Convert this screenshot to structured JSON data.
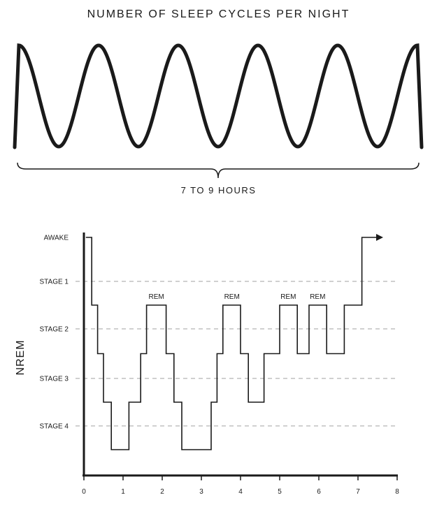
{
  "title": "NUMBER OF SLEEP CYCLES PER NIGHT",
  "duration_label": "7 TO 9 HOURS",
  "cycles": 5,
  "hypnogram": {
    "y_axis_title": "NREM",
    "levels": [
      "AWAKE",
      "STAGE 1",
      "STAGE 2",
      "STAGE 3",
      "STAGE 4"
    ],
    "x_ticks": [
      "0",
      "1",
      "2",
      "3",
      "4",
      "5",
      "6",
      "7",
      "8"
    ],
    "rem_labels": [
      "REM",
      "REM",
      "REM",
      "REM"
    ],
    "gridlines": "dashed",
    "path": [
      [
        0.05,
        0
      ],
      [
        0.2,
        0
      ],
      [
        0.2,
        1.5
      ],
      [
        0.35,
        1.5
      ],
      [
        0.35,
        2.5
      ],
      [
        0.5,
        2.5
      ],
      [
        0.5,
        3.5
      ],
      [
        0.7,
        3.5
      ],
      [
        0.7,
        4.5
      ],
      [
        1.15,
        4.5
      ],
      [
        1.15,
        3.5
      ],
      [
        1.45,
        3.5
      ],
      [
        1.45,
        2.5
      ],
      [
        1.6,
        2.5
      ],
      [
        1.6,
        1.5
      ],
      [
        2.1,
        1.5
      ],
      [
        2.1,
        2.5
      ],
      [
        2.3,
        2.5
      ],
      [
        2.3,
        3.5
      ],
      [
        2.5,
        3.5
      ],
      [
        2.5,
        4.5
      ],
      [
        3.25,
        4.5
      ],
      [
        3.25,
        3.5
      ],
      [
        3.4,
        3.5
      ],
      [
        3.4,
        2.5
      ],
      [
        3.55,
        2.5
      ],
      [
        3.55,
        1.5
      ],
      [
        4.0,
        1.5
      ],
      [
        4.0,
        2.5
      ],
      [
        4.2,
        2.5
      ],
      [
        4.2,
        3.5
      ],
      [
        4.6,
        3.5
      ],
      [
        4.6,
        2.5
      ],
      [
        5.0,
        2.5
      ],
      [
        5.0,
        1.5
      ],
      [
        5.45,
        1.5
      ],
      [
        5.45,
        2.5
      ],
      [
        5.75,
        2.5
      ],
      [
        5.75,
        1.5
      ],
      [
        6.2,
        1.5
      ],
      [
        6.2,
        2.5
      ],
      [
        6.65,
        2.5
      ],
      [
        6.65,
        1.5
      ],
      [
        7.1,
        1.5
      ],
      [
        7.1,
        0
      ],
      [
        7.5,
        0
      ]
    ],
    "rem_positions": [
      [
        1.85,
        1.5
      ],
      [
        3.78,
        1.5
      ],
      [
        5.22,
        1.5
      ],
      [
        5.97,
        1.5
      ]
    ]
  }
}
